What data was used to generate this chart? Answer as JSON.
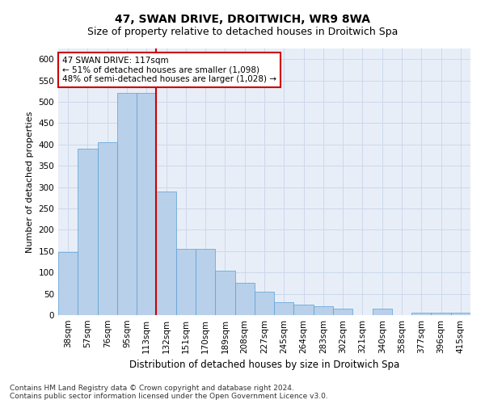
{
  "title": "47, SWAN DRIVE, DROITWICH, WR9 8WA",
  "subtitle": "Size of property relative to detached houses in Droitwich Spa",
  "xlabel": "Distribution of detached houses by size in Droitwich Spa",
  "ylabel": "Number of detached properties",
  "categories": [
    "38sqm",
    "57sqm",
    "76sqm",
    "95sqm",
    "113sqm",
    "132sqm",
    "151sqm",
    "170sqm",
    "189sqm",
    "208sqm",
    "227sqm",
    "245sqm",
    "264sqm",
    "283sqm",
    "302sqm",
    "321sqm",
    "340sqm",
    "358sqm",
    "377sqm",
    "396sqm",
    "415sqm"
  ],
  "values": [
    148,
    390,
    405,
    520,
    520,
    290,
    155,
    155,
    105,
    75,
    55,
    30,
    25,
    20,
    15,
    0,
    15,
    0,
    5,
    5,
    5
  ],
  "bar_color": "#b8d0ea",
  "bar_edge_color": "#5a9fd4",
  "grid_color": "#ccd8ea",
  "background_color": "#e8eef8",
  "annotation_text": "47 SWAN DRIVE: 117sqm\n← 51% of detached houses are smaller (1,098)\n48% of semi-detached houses are larger (1,028) →",
  "vline_x_idx": 4,
  "vline_color": "#cc0000",
  "annotation_box_edge": "#cc0000",
  "ylim": [
    0,
    625
  ],
  "yticks": [
    0,
    50,
    100,
    150,
    200,
    250,
    300,
    350,
    400,
    450,
    500,
    550,
    600
  ],
  "footer": "Contains HM Land Registry data © Crown copyright and database right 2024.\nContains public sector information licensed under the Open Government Licence v3.0.",
  "title_fontsize": 10,
  "subtitle_fontsize": 9,
  "xlabel_fontsize": 8.5,
  "ylabel_fontsize": 8,
  "tick_fontsize": 7.5,
  "annotation_fontsize": 7.5,
  "footer_fontsize": 6.5
}
